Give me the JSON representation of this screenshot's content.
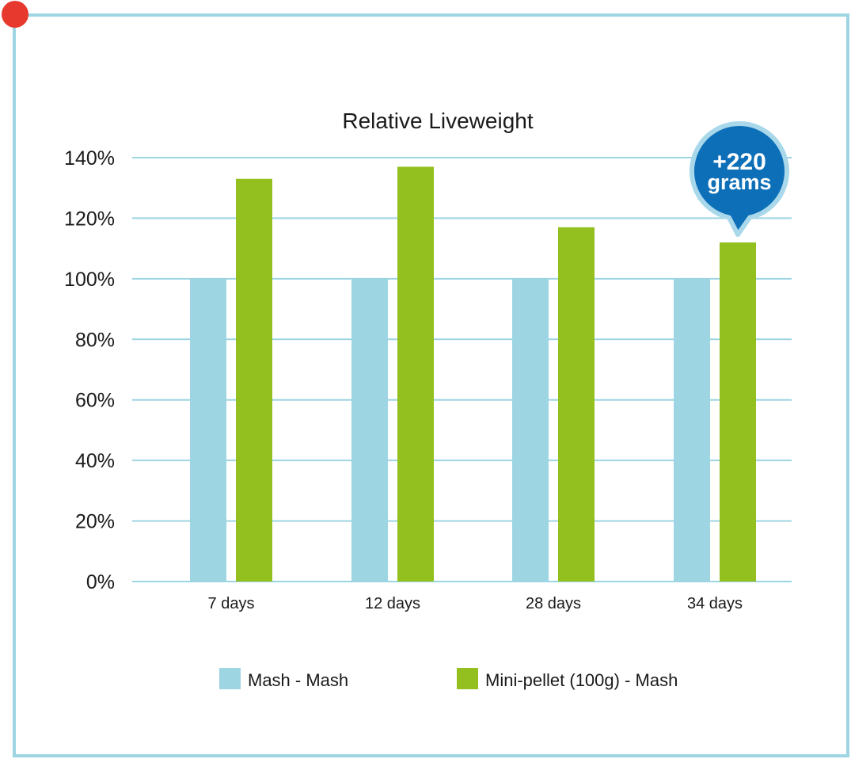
{
  "colors": {
    "frame": "#9ed5e3",
    "grid": "#9ed5e3",
    "corner_dot": "#e8392f",
    "series_1": "#9dd5e3",
    "series_2": "#93c01f",
    "callout_fill": "#0d6fb8",
    "callout_ring": "#a8d8ea",
    "text": "#1a1a1a"
  },
  "callout": {
    "line1": "+220",
    "line2": "grams"
  },
  "chart_data": {
    "type": "bar",
    "title": "Relative Liveweight",
    "categories": [
      "7 days",
      "12 days",
      "28 days",
      "34 days"
    ],
    "series": [
      {
        "name": "Mash - Mash",
        "values": [
          100,
          100,
          100,
          100
        ]
      },
      {
        "name": "Mini-pellet (100g) - Mash",
        "values": [
          133,
          137,
          117,
          112
        ]
      }
    ],
    "y_ticks": [
      "0%",
      "20%",
      "40%",
      "60%",
      "80%",
      "100%",
      "120%",
      "140%"
    ],
    "ylim": [
      0,
      140
    ],
    "y_step": 20,
    "xlabel": "",
    "ylabel": "",
    "grid": true,
    "legend_position": "bottom"
  }
}
